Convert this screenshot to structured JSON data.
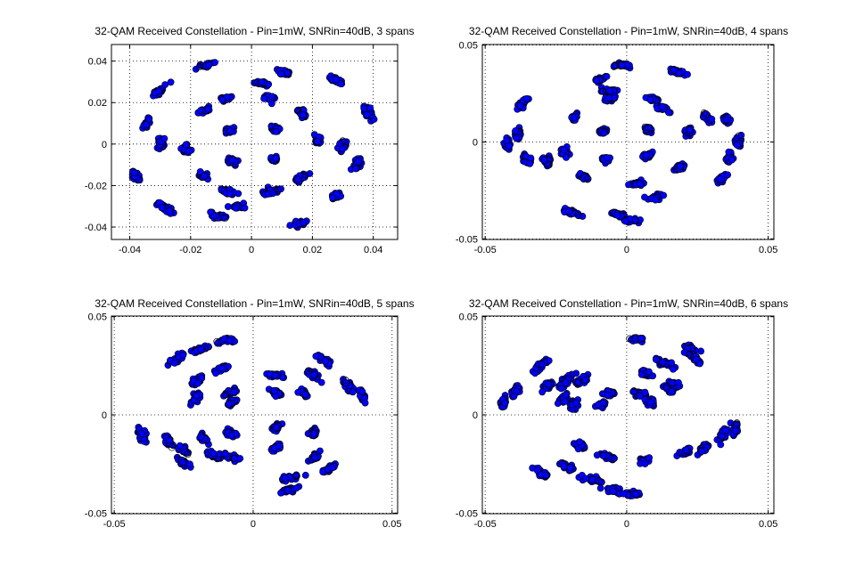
{
  "chart_data": [
    {
      "type": "scatter",
      "title": "32-QAM Received Constellation - Pin=1mW, SNRin=40dB, 3 spans",
      "xlim": [
        -0.046,
        0.048
      ],
      "ylim": [
        -0.046,
        0.048
      ],
      "xticks": [
        -0.04,
        -0.02,
        0,
        0.02,
        0.04
      ],
      "yticks": [
        -0.04,
        -0.02,
        0,
        0.02,
        0.04
      ],
      "xtick_labels": [
        "-0.04",
        "-0.02",
        "0",
        "0.02",
        "0.04"
      ],
      "ytick_labels": [
        "-0.04",
        "-0.02",
        "0",
        "0.02",
        "0.04"
      ],
      "grid": true,
      "marker": "circle",
      "marker_colors": {
        "fill": "#0000ff",
        "edge": "#000000"
      },
      "centroids": [
        [
          -0.0146,
          0.0382
        ],
        [
          0.0103,
          0.0346
        ],
        [
          0.0275,
          0.0311
        ],
        [
          -0.0305,
          0.0253
        ],
        [
          0.0038,
          0.0292
        ],
        [
          -0.0088,
          0.0219
        ],
        [
          0.0058,
          0.0224
        ],
        [
          -0.0157,
          0.0159
        ],
        [
          0.0166,
          0.0149
        ],
        [
          0.0385,
          0.0149
        ],
        [
          -0.0346,
          0.0097
        ],
        [
          -0.0073,
          0.0066
        ],
        [
          0.0076,
          0.0076
        ],
        [
          -0.0298,
          0.0007
        ],
        [
          -0.0216,
          -0.0022
        ],
        [
          0.0218,
          0.0017
        ],
        [
          0.0299,
          -0.0008
        ],
        [
          -0.0063,
          -0.0083
        ],
        [
          0.0073,
          -0.0071
        ],
        [
          -0.0158,
          -0.0154
        ],
        [
          0.0163,
          -0.0163
        ],
        [
          0.0347,
          -0.0098
        ],
        [
          -0.0381,
          -0.0154
        ],
        [
          -0.0077,
          -0.0231
        ],
        [
          0.0066,
          -0.0229
        ],
        [
          -0.0284,
          -0.0307
        ],
        [
          -0.0045,
          -0.0301
        ],
        [
          0.0276,
          -0.0251
        ],
        [
          -0.0111,
          -0.0349
        ],
        [
          0.0161,
          -0.0382
        ]
      ]
    },
    {
      "type": "scatter",
      "title": "32-QAM Received Constellation - Pin=1mW, SNRin=40dB, 4 spans",
      "xlim": [
        -0.051,
        0.052
      ],
      "ylim": [
        -0.0503,
        0.0503
      ],
      "xticks": [
        -0.05,
        0,
        0.05
      ],
      "yticks": [
        -0.05,
        0,
        0.05
      ],
      "xtick_labels": [
        "-0.05",
        "0",
        "0.05"
      ],
      "ytick_labels": [
        "-0.05",
        "0",
        "0.05"
      ],
      "grid": true,
      "marker": "circle",
      "marker_colors": {
        "fill": "#0000ff",
        "edge": "#000000"
      },
      "centroids": [
        [
          -0.0012,
          0.0395
        ],
        [
          0.0178,
          0.0362
        ],
        [
          -0.0094,
          0.0326
        ],
        [
          -0.0368,
          0.0198
        ],
        [
          -0.0063,
          0.0267
        ],
        [
          -0.0064,
          0.0222
        ],
        [
          0.0092,
          0.0222
        ],
        [
          0.0127,
          0.0173
        ],
        [
          0.0283,
          0.0128
        ],
        [
          -0.0184,
          0.0128
        ],
        [
          0.0352,
          0.0119
        ],
        [
          -0.0386,
          0.0039
        ],
        [
          0.0075,
          0.0066
        ],
        [
          -0.0084,
          0.0057
        ],
        [
          -0.0424,
          -0.0014
        ],
        [
          0.0219,
          0.0054
        ],
        [
          0.0397,
          0.0005
        ],
        [
          0.0073,
          -0.0071
        ],
        [
          -0.0217,
          -0.0061
        ],
        [
          -0.0074,
          -0.0091
        ],
        [
          -0.0282,
          -0.0097
        ],
        [
          0.0362,
          -0.0085
        ],
        [
          0.0186,
          -0.0132
        ],
        [
          -0.0351,
          -0.0092
        ],
        [
          -0.0152,
          -0.0177
        ],
        [
          0.0339,
          -0.0187
        ],
        [
          0.0033,
          -0.0217
        ],
        [
          0.0102,
          -0.0285
        ],
        [
          -0.0196,
          -0.0365
        ],
        [
          -0.0032,
          -0.0372
        ],
        [
          0.0018,
          -0.0404
        ]
      ]
    },
    {
      "type": "scatter",
      "title": "32-QAM Received Constellation - Pin=1mW, SNRin=40dB, 5 spans",
      "xlim": [
        -0.051,
        0.052
      ],
      "ylim": [
        -0.0503,
        0.0503
      ],
      "xticks": [
        -0.05,
        0,
        0.05
      ],
      "yticks": [
        -0.05,
        0,
        0.05
      ],
      "xtick_labels": [
        "-0.05",
        "0",
        "0.05"
      ],
      "ytick_labels": [
        "-0.05",
        "0",
        "0.05"
      ],
      "grid": true,
      "marker": "circle",
      "marker_colors": {
        "fill": "#0000ff",
        "edge": "#000000"
      },
      "centroids": [
        [
          -0.0098,
          0.0381
        ],
        [
          -0.0191,
          0.0332
        ],
        [
          -0.0274,
          0.0288
        ],
        [
          0.0258,
          0.0277
        ],
        [
          0.0218,
          0.0203
        ],
        [
          0.0083,
          0.0203
        ],
        [
          -0.0117,
          0.0232
        ],
        [
          -0.0202,
          0.0173
        ],
        [
          0.0345,
          0.0147
        ],
        [
          0.0392,
          0.0097
        ],
        [
          0.0184,
          0.0109
        ],
        [
          0.0081,
          0.0115
        ],
        [
          -0.0082,
          0.0115
        ],
        [
          -0.0206,
          0.0086
        ],
        [
          -0.0079,
          0.0063
        ],
        [
          -0.0402,
          -0.0098
        ],
        [
          -0.0305,
          -0.0138
        ],
        [
          0.0085,
          -0.0065
        ],
        [
          0.0216,
          -0.0094
        ],
        [
          -0.0181,
          -0.0118
        ],
        [
          -0.0252,
          -0.0176
        ],
        [
          -0.0079,
          -0.0098
        ],
        [
          0.0085,
          -0.0168
        ],
        [
          -0.0248,
          -0.0248
        ],
        [
          -0.0145,
          -0.0205
        ],
        [
          0.0217,
          -0.0218
        ],
        [
          0.0278,
          -0.0271
        ],
        [
          -0.0079,
          -0.0215
        ],
        [
          0.0126,
          -0.0324
        ],
        [
          0.0125,
          -0.0381
        ]
      ]
    },
    {
      "type": "scatter",
      "title": "32-QAM Received Constellation - Pin=1mW, SNRin=40dB, 6 spans",
      "xlim": [
        -0.051,
        0.052
      ],
      "ylim": [
        -0.0503,
        0.0503
      ],
      "xticks": [
        -0.05,
        0,
        0.05
      ],
      "yticks": [
        -0.05,
        0,
        0.05
      ],
      "xtick_labels": [
        "-0.05",
        "0",
        "0.05"
      ],
      "ytick_labels": [
        "-0.05",
        "0",
        "0.05"
      ],
      "grid": true,
      "marker": "circle",
      "marker_colors": {
        "fill": "#0000ff",
        "edge": "#000000"
      },
      "centroids": [
        [
          0.0043,
          0.0384
        ],
        [
          0.0223,
          0.0341
        ],
        [
          -0.0302,
          0.0254
        ],
        [
          0.0129,
          0.0265
        ],
        [
          0.0247,
          0.0284
        ],
        [
          -0.0392,
          0.0124
        ],
        [
          -0.0279,
          0.0148
        ],
        [
          -0.0208,
          0.0186
        ],
        [
          -0.0154,
          0.0179
        ],
        [
          0.0066,
          0.0214
        ],
        [
          -0.0228,
          0.0152
        ],
        [
          0.0174,
          0.0151
        ],
        [
          0.0154,
          0.0124
        ],
        [
          -0.0437,
          0.0057
        ],
        [
          -0.0222,
          0.0081
        ],
        [
          -0.0059,
          0.0111
        ],
        [
          0.0047,
          0.0109
        ],
        [
          0.0083,
          0.0065
        ],
        [
          -0.0086,
          0.0054
        ],
        [
          -0.0189,
          0.0049
        ],
        [
          0.0383,
          -0.0074
        ],
        [
          0.0341,
          -0.0098
        ],
        [
          0.0269,
          -0.0171
        ],
        [
          -0.0162,
          -0.0157
        ],
        [
          -0.0068,
          -0.0214
        ],
        [
          0.0207,
          -0.0188
        ],
        [
          -0.0209,
          -0.0265
        ],
        [
          -0.0295,
          -0.0302
        ],
        [
          -0.0118,
          -0.0332
        ],
        [
          -0.0047,
          -0.0381
        ],
        [
          0.0017,
          -0.0404
        ],
        [
          0.0064,
          -0.0232
        ]
      ]
    }
  ]
}
